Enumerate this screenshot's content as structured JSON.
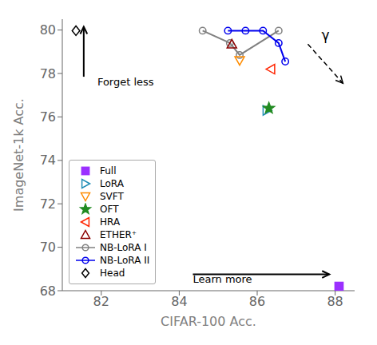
{
  "chart_data": {
    "type": "scatter",
    "xlabel": "CIFAR-100 Acc.",
    "ylabel": "ImageNet-1k Acc.",
    "xlim": [
      81,
      88.5
    ],
    "ylim": [
      68,
      80.5
    ],
    "xticks": [
      82,
      84,
      86,
      88
    ],
    "yticks": [
      68,
      70,
      72,
      74,
      76,
      78,
      80
    ],
    "grid": false,
    "legend": "lower left",
    "series": [
      {
        "name": "Full",
        "type": "scatter",
        "color": "#9B30FF",
        "marker": "square",
        "x": [
          88.1
        ],
        "y": [
          68.2
        ]
      },
      {
        "name": "LoRA",
        "type": "scatter",
        "color": "#1E8CB5",
        "marker": "open-triangle-right",
        "x": [
          86.25
        ],
        "y": [
          76.3
        ]
      },
      {
        "name": "SVFT",
        "type": "scatter",
        "color": "#FF8C00",
        "marker": "open-triangle-down",
        "x": [
          85.55
        ],
        "y": [
          78.6
        ]
      },
      {
        "name": "OFT",
        "type": "scatter",
        "color": "#228B22",
        "marker": "star",
        "x": [
          86.3
        ],
        "y": [
          76.4
        ]
      },
      {
        "name": "HRA",
        "type": "scatter",
        "color": "#FF2400",
        "marker": "open-triangle-left",
        "x": [
          86.35
        ],
        "y": [
          78.2
        ]
      },
      {
        "name": "ETHER⁺",
        "type": "scatter",
        "color": "#8B0000",
        "marker": "open-triangle-up",
        "x": [
          85.35
        ],
        "y": [
          79.35
        ]
      },
      {
        "name": "NB-LoRA I",
        "type": "line",
        "line_style": "solid",
        "color": "#808080",
        "marker": "open-circle",
        "x": [
          84.6,
          85.3,
          85.55,
          86.55
        ],
        "y": [
          79.97,
          79.4,
          78.85,
          79.97
        ]
      },
      {
        "name": "NB-LoRA II",
        "type": "line",
        "line_style": "solid",
        "color": "#0000EE",
        "marker": "open-circle",
        "x": [
          85.25,
          85.7,
          86.15,
          86.55,
          86.72
        ],
        "y": [
          79.97,
          79.97,
          79.97,
          79.4,
          78.55
        ]
      },
      {
        "name": "Head",
        "type": "scatter",
        "color": "#000000",
        "marker": "open-diamond",
        "x": [
          81.35
        ],
        "y": [
          79.97
        ]
      }
    ],
    "annotations": [
      {
        "text": "Forget less",
        "x": 81.9,
        "y": 77.45,
        "arrow_from": [
          81.55,
          77.85
        ],
        "arrow_to": [
          81.55,
          80.15
        ],
        "line_style": "solid"
      },
      {
        "text": "Learn more",
        "x": 84.35,
        "y": 68.35,
        "arrow_from": [
          84.35,
          68.75
        ],
        "arrow_to": [
          87.85,
          68.75
        ],
        "line_style": "solid"
      },
      {
        "text": "γ",
        "x": 87.65,
        "y": 79.55,
        "arrow_from": [
          87.3,
          79.35
        ],
        "arrow_to": [
          88.2,
          77.55
        ],
        "line_style": "dashed"
      }
    ]
  }
}
